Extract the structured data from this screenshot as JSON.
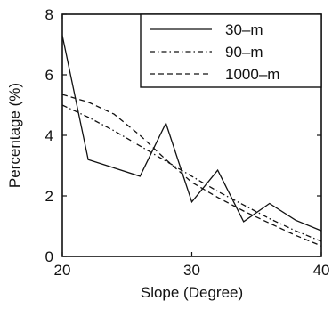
{
  "chart_data": {
    "type": "line",
    "title": "",
    "xlabel": "Slope (Degree)",
    "ylabel": "Percentage (%)",
    "xlim": [
      20,
      40
    ],
    "ylim": [
      0,
      8
    ],
    "xticks": [
      20,
      30,
      40
    ],
    "yticks": [
      0,
      2,
      4,
      6,
      8
    ],
    "grid": false,
    "legend_position": "top-right",
    "series": [
      {
        "name": "30–m",
        "style": "solid",
        "color": "#111111",
        "x": [
          20,
          22,
          26,
          28,
          30,
          32,
          34,
          36,
          38,
          40
        ],
        "y": [
          7.3,
          3.2,
          2.65,
          4.4,
          1.8,
          2.85,
          1.15,
          1.75,
          1.2,
          0.85
        ]
      },
      {
        "name": "90–m",
        "style": "dashdot",
        "color": "#111111",
        "x": [
          20,
          22,
          24,
          26,
          28,
          30,
          32,
          34,
          36,
          38,
          40
        ],
        "y": [
          5.0,
          4.6,
          4.15,
          3.65,
          3.15,
          2.65,
          2.15,
          1.7,
          1.25,
          0.85,
          0.5
        ]
      },
      {
        "name": "1000–m",
        "style": "dashed",
        "color": "#111111",
        "x": [
          20,
          22,
          24,
          26,
          28,
          30,
          32,
          34,
          36,
          38,
          40
        ],
        "y": [
          5.35,
          5.1,
          4.7,
          4.0,
          3.2,
          2.45,
          1.95,
          1.5,
          1.1,
          0.7,
          0.35
        ]
      }
    ]
  }
}
